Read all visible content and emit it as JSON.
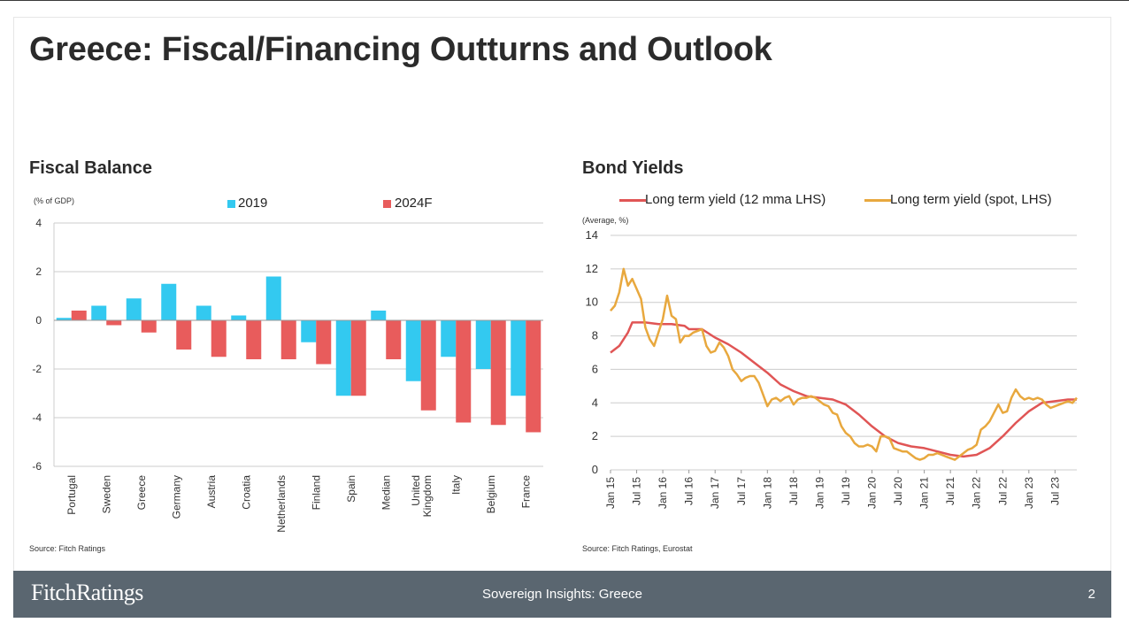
{
  "page": {
    "title": "Greece: Fiscal/Financing Outturns and Outlook",
    "footer": {
      "brand": "FitchRatings",
      "center": "Sovereign Insights: Greece",
      "page_number": "2"
    }
  },
  "fiscal_panel": {
    "title": "Fiscal Balance",
    "unit_label": "(% of GDP)",
    "source": "Source: Fitch Ratings"
  },
  "bond_panel": {
    "title": "Bond Yields",
    "unit_label": "(Average, %)",
    "source": "Source: Fitch Ratings, Eurostat"
  },
  "colors": {
    "series_2019": "#33c9f0",
    "series_2024": "#e85c5c",
    "yield_12mma": "#e05555",
    "yield_spot": "#e8a83e",
    "grid": "#cccccc",
    "footer": "#5a6670"
  },
  "chart_data": [
    {
      "type": "bar",
      "title": "Fiscal Balance",
      "ylabel": "(% of GDP)",
      "ylim": [
        -6,
        4
      ],
      "yticks": [
        4,
        2,
        0,
        -2,
        -4,
        -6
      ],
      "grid": true,
      "legend_position": "top",
      "categories": [
        "Portugal",
        "Sweden",
        "Greece",
        "Germany",
        "Austria",
        "Croatia",
        "Netherlands",
        "Finland",
        "Spain",
        "Median",
        "United Kingdom",
        "Italy",
        "Belgium",
        "France"
      ],
      "category_labels": [
        [
          "Portugal"
        ],
        [
          "Sweden"
        ],
        [
          "Greece"
        ],
        [
          "Germany"
        ],
        [
          "Austria"
        ],
        [
          "Croatia"
        ],
        [
          "Netherlands"
        ],
        [
          "Finland"
        ],
        [
          "Spain"
        ],
        [
          "Median"
        ],
        [
          "United",
          "Kingdom"
        ],
        [
          "Italy"
        ],
        [
          "Belgium"
        ],
        [
          "France"
        ]
      ],
      "series": [
        {
          "name": "2019",
          "values": [
            0.1,
            0.6,
            0.9,
            1.5,
            0.6,
            0.2,
            1.8,
            -0.9,
            -3.1,
            0.4,
            -2.5,
            -1.5,
            -2.0,
            -3.1
          ]
        },
        {
          "name": "2024F",
          "values": [
            0.4,
            -0.2,
            -0.5,
            -1.2,
            -1.5,
            -1.6,
            -1.6,
            -1.8,
            -3.1,
            -1.6,
            -3.7,
            -4.2,
            -4.3,
            -4.6
          ]
        }
      ]
    },
    {
      "type": "line",
      "title": "Bond Yields",
      "ylabel": "(Average, %)",
      "ylim": [
        0,
        14
      ],
      "yticks": [
        0,
        2,
        4,
        6,
        8,
        10,
        12,
        14
      ],
      "grid": true,
      "legend_position": "top",
      "x_start": "Jan 15",
      "x_end": "Dec 23",
      "xtick_labels": [
        "Jan 15",
        "Jul 15",
        "Jan 16",
        "Jul 16",
        "Jan 17",
        "Jul 17",
        "Jan 18",
        "Jul 18",
        "Jan 19",
        "Jul 19",
        "Jan 20",
        "Jul 20",
        "Jan 21",
        "Jul 21",
        "Jan 22",
        "Jul 22",
        "Jan 23",
        "Jul 23"
      ],
      "series": [
        {
          "name": "Long term yield (12 mma LHS)",
          "points": [
            [
              "Jan 15",
              7.0
            ],
            [
              "Mar 15",
              7.4
            ],
            [
              "May 15",
              8.2
            ],
            [
              "Jun 15",
              8.8
            ],
            [
              "Sep 15",
              8.8
            ],
            [
              "Dec 15",
              8.7
            ],
            [
              "Mar 16",
              8.7
            ],
            [
              "Jun 16",
              8.6
            ],
            [
              "Jul 16",
              8.4
            ],
            [
              "Oct 16",
              8.4
            ],
            [
              "Jan 17",
              7.9
            ],
            [
              "Apr 17",
              7.5
            ],
            [
              "Jul 17",
              7.0
            ],
            [
              "Oct 17",
              6.4
            ],
            [
              "Jan 18",
              5.8
            ],
            [
              "Apr 18",
              5.1
            ],
            [
              "Jul 18",
              4.7
            ],
            [
              "Oct 18",
              4.4
            ],
            [
              "Jan 19",
              4.3
            ],
            [
              "Apr 19",
              4.2
            ],
            [
              "Jul 19",
              3.9
            ],
            [
              "Oct 19",
              3.3
            ],
            [
              "Jan 20",
              2.6
            ],
            [
              "Apr 20",
              2.0
            ],
            [
              "Jul 20",
              1.6
            ],
            [
              "Oct 20",
              1.4
            ],
            [
              "Jan 21",
              1.3
            ],
            [
              "Apr 21",
              1.1
            ],
            [
              "Jul 21",
              0.9
            ],
            [
              "Oct 21",
              0.8
            ],
            [
              "Jan 22",
              0.9
            ],
            [
              "Apr 22",
              1.3
            ],
            [
              "Jul 22",
              2.0
            ],
            [
              "Oct 22",
              2.8
            ],
            [
              "Jan 23",
              3.5
            ],
            [
              "Apr 23",
              4.0
            ],
            [
              "Jul 23",
              4.1
            ],
            [
              "Oct 23",
              4.2
            ],
            [
              "Dec 23",
              4.2
            ]
          ]
        },
        {
          "name": "Long term yield (spot, LHS)",
          "points": [
            [
              "Jan 15",
              9.5
            ],
            [
              "Feb 15",
              9.8
            ],
            [
              "Mar 15",
              10.6
            ],
            [
              "Apr 15",
              12.0
            ],
            [
              "May 15",
              11.0
            ],
            [
              "Jun 15",
              11.4
            ],
            [
              "Jul 15",
              10.8
            ],
            [
              "Aug 15",
              10.2
            ],
            [
              "Sep 15",
              8.5
            ],
            [
              "Oct 15",
              7.8
            ],
            [
              "Nov 15",
              7.4
            ],
            [
              "Dec 15",
              8.2
            ],
            [
              "Jan 16",
              9.0
            ],
            [
              "Feb 16",
              10.4
            ],
            [
              "Mar 16",
              9.2
            ],
            [
              "Apr 16",
              9.0
            ],
            [
              "May 16",
              7.6
            ],
            [
              "Jun 16",
              8.0
            ],
            [
              "Jul 16",
              8.0
            ],
            [
              "Aug 16",
              8.2
            ],
            [
              "Sep 16",
              8.3
            ],
            [
              "Oct 16",
              8.4
            ],
            [
              "Nov 16",
              7.4
            ],
            [
              "Dec 16",
              7.0
            ],
            [
              "Jan 17",
              7.1
            ],
            [
              "Feb 17",
              7.6
            ],
            [
              "Mar 17",
              7.3
            ],
            [
              "Apr 17",
              6.8
            ],
            [
              "May 17",
              6.0
            ],
            [
              "Jun 17",
              5.7
            ],
            [
              "Jul 17",
              5.3
            ],
            [
              "Aug 17",
              5.5
            ],
            [
              "Sep 17",
              5.6
            ],
            [
              "Oct 17",
              5.6
            ],
            [
              "Nov 17",
              5.2
            ],
            [
              "Dec 17",
              4.5
            ],
            [
              "Jan 18",
              3.8
            ],
            [
              "Feb 18",
              4.2
            ],
            [
              "Mar 18",
              4.3
            ],
            [
              "Apr 18",
              4.1
            ],
            [
              "May 18",
              4.3
            ],
            [
              "Jun 18",
              4.4
            ],
            [
              "Jul 18",
              3.9
            ],
            [
              "Aug 18",
              4.2
            ],
            [
              "Sep 18",
              4.3
            ],
            [
              "Oct 18",
              4.3
            ],
            [
              "Nov 18",
              4.4
            ],
            [
              "Dec 18",
              4.3
            ],
            [
              "Jan 19",
              4.1
            ],
            [
              "Feb 19",
              3.9
            ],
            [
              "Mar 19",
              3.8
            ],
            [
              "Apr 19",
              3.4
            ],
            [
              "May 19",
              3.3
            ],
            [
              "Jun 19",
              2.6
            ],
            [
              "Jul 19",
              2.2
            ],
            [
              "Aug 19",
              2.0
            ],
            [
              "Sep 19",
              1.6
            ],
            [
              "Oct 19",
              1.4
            ],
            [
              "Nov 19",
              1.4
            ],
            [
              "Dec 19",
              1.5
            ],
            [
              "Jan 20",
              1.4
            ],
            [
              "Feb 20",
              1.1
            ],
            [
              "Mar 20",
              2.0
            ],
            [
              "Apr 20",
              2.0
            ],
            [
              "May 20",
              1.9
            ],
            [
              "Jun 20",
              1.3
            ],
            [
              "Jul 20",
              1.2
            ],
            [
              "Aug 20",
              1.1
            ],
            [
              "Sep 20",
              1.1
            ],
            [
              "Oct 20",
              0.9
            ],
            [
              "Nov 20",
              0.7
            ],
            [
              "Dec 20",
              0.6
            ],
            [
              "Jan 21",
              0.7
            ],
            [
              "Feb 21",
              0.9
            ],
            [
              "Mar 21",
              0.9
            ],
            [
              "Apr 21",
              1.0
            ],
            [
              "May 21",
              0.9
            ],
            [
              "Jun 21",
              0.8
            ],
            [
              "Jul 21",
              0.7
            ],
            [
              "Aug 21",
              0.6
            ],
            [
              "Sep 21",
              0.8
            ],
            [
              "Oct 21",
              1.0
            ],
            [
              "Nov 21",
              1.2
            ],
            [
              "Dec 21",
              1.3
            ],
            [
              "Jan 22",
              1.5
            ],
            [
              "Feb 22",
              2.4
            ],
            [
              "Mar 22",
              2.6
            ],
            [
              "Apr 22",
              2.9
            ],
            [
              "May 22",
              3.4
            ],
            [
              "Jun 22",
              3.9
            ],
            [
              "Jul 22",
              3.4
            ],
            [
              "Aug 22",
              3.5
            ],
            [
              "Sep 22",
              4.3
            ],
            [
              "Oct 22",
              4.8
            ],
            [
              "Nov 22",
              4.4
            ],
            [
              "Dec 22",
              4.2
            ],
            [
              "Jan 23",
              4.3
            ],
            [
              "Feb 23",
              4.2
            ],
            [
              "Mar 23",
              4.3
            ],
            [
              "Apr 23",
              4.2
            ],
            [
              "May 23",
              3.9
            ],
            [
              "Jun 23",
              3.7
            ],
            [
              "Jul 23",
              3.8
            ],
            [
              "Aug 23",
              3.9
            ],
            [
              "Sep 23",
              4.0
            ],
            [
              "Oct 23",
              4.1
            ],
            [
              "Nov 23",
              4.0
            ],
            [
              "Dec 23",
              4.3
            ]
          ]
        }
      ]
    }
  ]
}
